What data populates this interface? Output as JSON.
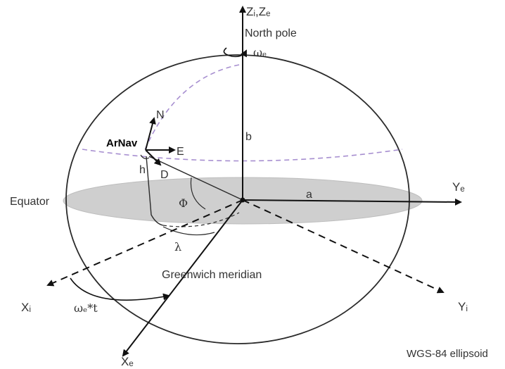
{
  "labels": {
    "z_axis": "Zᵢ,Zₑ",
    "north_pole": "North pole",
    "omega_e": "ωₑ",
    "b": "b",
    "a": "a",
    "N": "N",
    "E": "E",
    "D": "D",
    "h": "h",
    "arnav": "ArNav",
    "phi": "Φ",
    "lambda": "λ",
    "equator": "Equator",
    "y_e": "Yₑ",
    "y_i": "Yᵢ",
    "x_i": "Xᵢ",
    "x_e": "Xₑ",
    "omega_t": "ωₑ*t",
    "greenwich": "Greenwich meridian",
    "ellipsoid": "WGS-84 ellipsoid"
  },
  "colors": {
    "outline": "#2b2b2b",
    "axis": "#111111",
    "meridian_dashed": "#a78fd0",
    "equator_plane": "#cfcfcf",
    "text": "#333333"
  }
}
